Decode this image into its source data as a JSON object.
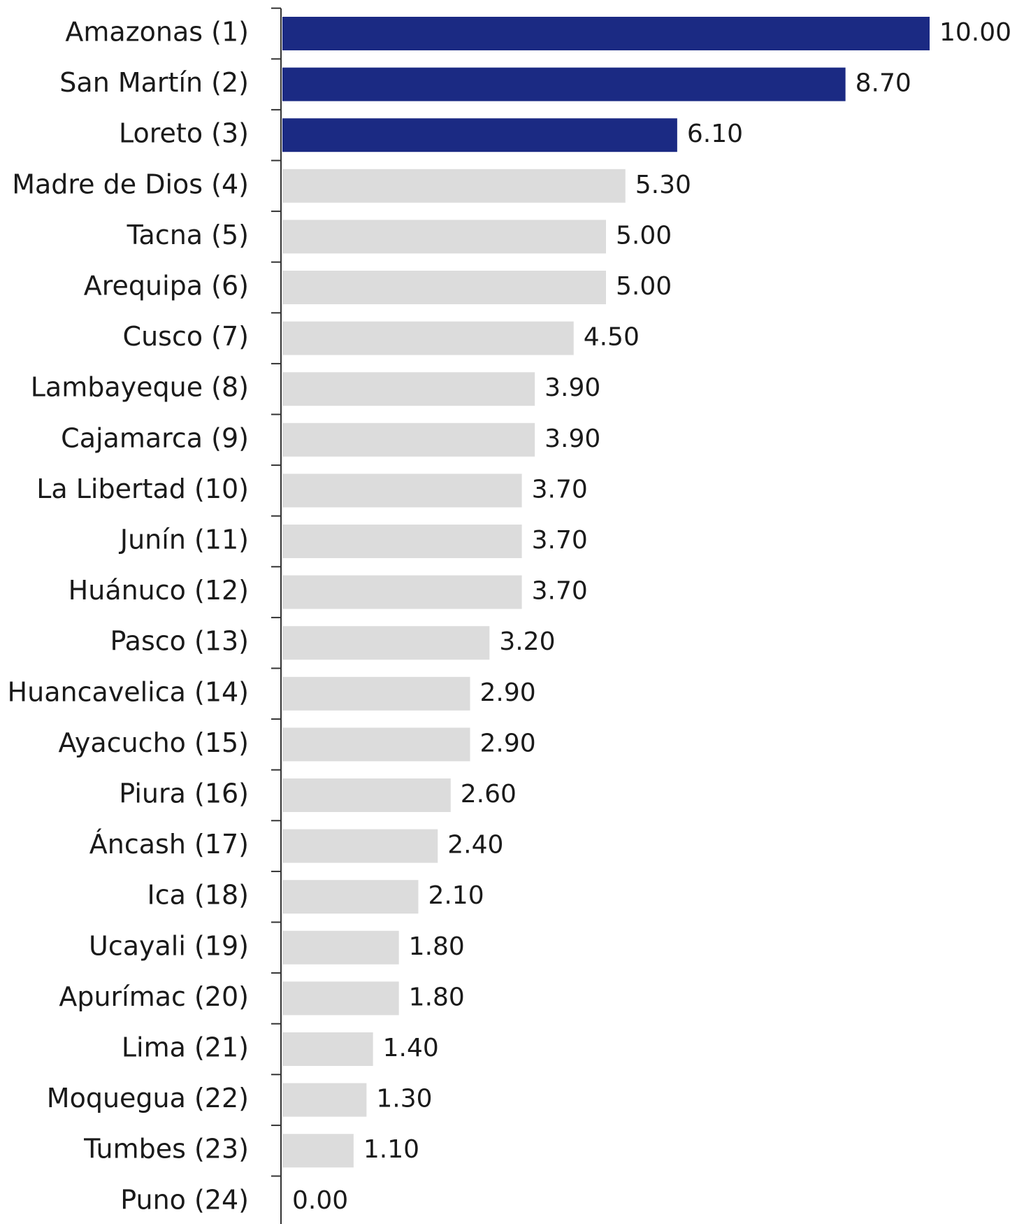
{
  "chart_data": {
    "type": "bar",
    "orientation": "horizontal",
    "categories": [
      "Amazonas (1)",
      "San Martín (2)",
      "Loreto (3)",
      "Madre de Dios (4)",
      "Tacna (5)",
      "Arequipa (6)",
      "Cusco (7)",
      "Lambayeque (8)",
      "Cajamarca (9)",
      "La Libertad (10)",
      "Junín (11)",
      "Huánuco (12)",
      "Pasco (13)",
      "Huancavelica (14)",
      "Ayacucho (15)",
      "Piura (16)",
      "Áncash (17)",
      "Ica (18)",
      "Ucayali (19)",
      "Apurímac (20)",
      "Lima (21)",
      "Moquegua (22)",
      "Tumbes (23)",
      "Puno (24)"
    ],
    "values": [
      10.0,
      8.7,
      6.1,
      5.3,
      5.0,
      5.0,
      4.5,
      3.9,
      3.9,
      3.7,
      3.7,
      3.7,
      3.2,
      2.9,
      2.9,
      2.6,
      2.4,
      2.1,
      1.8,
      1.8,
      1.4,
      1.3,
      1.1,
      0.0
    ],
    "value_labels": [
      "10.00",
      "8.70",
      "6.10",
      "5.30",
      "5.00",
      "5.00",
      "4.50",
      "3.90",
      "3.90",
      "3.70",
      "3.70",
      "3.70",
      "3.20",
      "2.90",
      "2.90",
      "2.60",
      "2.40",
      "2.10",
      "1.80",
      "1.80",
      "1.40",
      "1.30",
      "1.10",
      "0.00"
    ],
    "highlighted_count": 3,
    "xlim": [
      0,
      10
    ],
    "title": "",
    "xlabel": "",
    "ylabel": "",
    "grid": false,
    "legend": "none",
    "colors": {
      "highlight": "#1b2a83",
      "default": "#dcdcdc",
      "axis": "#333333",
      "text": "#1a1a1a"
    }
  }
}
